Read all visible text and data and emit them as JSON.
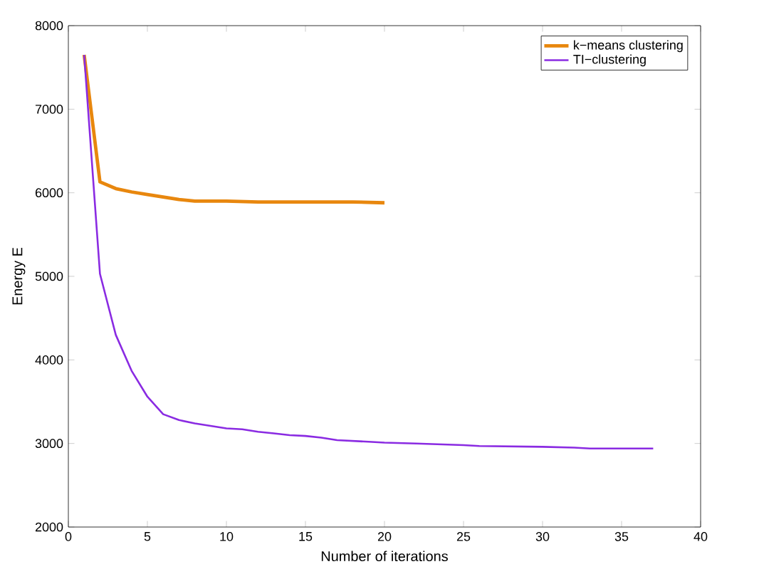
{
  "chart_data": {
    "type": "line",
    "xlabel": "Number of iterations",
    "ylabel": "Energy E",
    "xlim": [
      0,
      40
    ],
    "ylim": [
      2000,
      8000
    ],
    "xticks": [
      0,
      5,
      10,
      15,
      20,
      25,
      30,
      35,
      40
    ],
    "yticks": [
      2000,
      3000,
      4000,
      5000,
      6000,
      7000,
      8000
    ],
    "legend": "top right",
    "grid": false,
    "marker": "none",
    "line_style": "solid",
    "series": [
      {
        "name": "k−means clustering",
        "color": "#e8870e",
        "x": [
          1,
          2,
          3,
          4,
          5,
          6,
          7,
          8,
          10,
          12,
          14,
          16,
          18,
          20
        ],
        "values": [
          7650,
          6130,
          6050,
          6010,
          5980,
          5950,
          5920,
          5900,
          5900,
          5890,
          5890,
          5890,
          5890,
          5880
        ]
      },
      {
        "name": "TI−clustering",
        "color": "#8a2be2",
        "x": [
          1,
          2,
          3,
          4,
          5,
          6,
          7,
          8,
          9,
          10,
          11,
          12,
          13,
          14,
          15,
          16,
          17,
          18,
          19,
          20,
          22,
          25,
          26,
          30,
          32,
          33,
          37
        ],
        "values": [
          7650,
          5030,
          4300,
          3870,
          3560,
          3350,
          3280,
          3240,
          3210,
          3180,
          3170,
          3140,
          3120,
          3100,
          3090,
          3070,
          3040,
          3030,
          3020,
          3010,
          3000,
          2980,
          2970,
          2960,
          2950,
          2940,
          2940
        ]
      }
    ]
  }
}
